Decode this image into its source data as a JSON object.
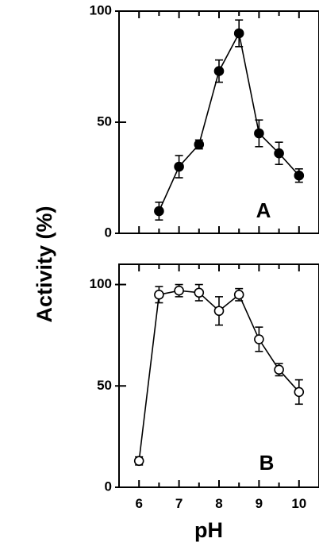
{
  "chart_data": {
    "type": "line",
    "ylabel": "Activity (%)",
    "xlabel": "pH",
    "xlim": [
      5.5,
      10.5
    ],
    "x_ticks": [
      6,
      7,
      8,
      9,
      10
    ],
    "panels": [
      {
        "label": "A",
        "marker": "filled-circle",
        "ylim": [
          0,
          100
        ],
        "y_ticks": [
          0,
          50,
          100
        ],
        "x": [
          6.5,
          7,
          7.5,
          8,
          8.5,
          9,
          9.5,
          10
        ],
        "values": [
          10,
          30,
          40,
          73,
          90,
          45,
          36,
          26
        ],
        "errors": [
          4,
          5,
          2,
          5,
          6,
          6,
          5,
          3
        ]
      },
      {
        "label": "B",
        "marker": "open-circle",
        "ylim": [
          0,
          110
        ],
        "y_ticks": [
          0,
          50,
          100
        ],
        "x": [
          6,
          6.5,
          7,
          7.5,
          8,
          8.5,
          9,
          9.5,
          10
        ],
        "values": [
          13,
          95,
          97,
          96,
          87,
          95,
          73,
          58,
          47
        ],
        "errors": [
          2,
          4,
          3,
          4,
          7,
          3,
          6,
          3,
          6
        ]
      }
    ]
  }
}
